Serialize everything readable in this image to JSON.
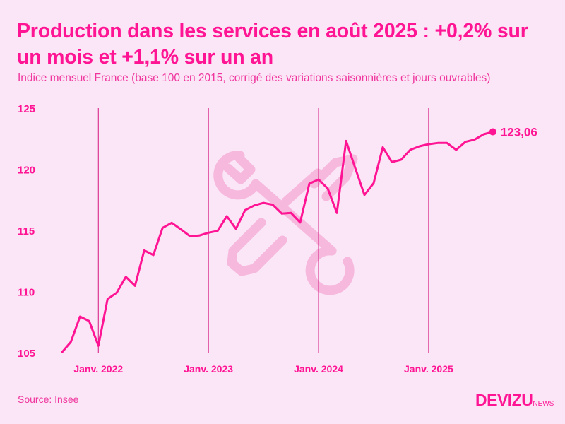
{
  "title": "Production dans les services en août 2025 : +0,2% sur un mois et +1,1% sur un an",
  "subtitle": "Indice mensuel France (base 100 en 2015, corrigé des variations saisonnières et jours ouvrables)",
  "source": "Source: Insee",
  "logo": {
    "main": "DEVIZU",
    "suffix": "NEWS"
  },
  "colors": {
    "background": "#fae6f7",
    "accent": "#ff1493",
    "watermark": "#f7b8dd"
  },
  "watermark_icons": [
    "wrench-icon",
    "screwdriver-icon"
  ],
  "chart_data": {
    "type": "line",
    "title": "",
    "xlabel": "",
    "ylabel": "",
    "ylim": [
      105,
      125
    ],
    "yticks": [
      "105",
      "110",
      "115",
      "120",
      "125"
    ],
    "xticks": [
      "Janv. 2022",
      "Janv. 2023",
      "Janv. 2024",
      "Janv. 2025"
    ],
    "grid": "vertical lines at January of each year",
    "x_start": "2021-09",
    "x_end": "2025-08",
    "values": [
      105.0,
      105.87,
      107.95,
      107.58,
      105.56,
      109.38,
      109.9,
      111.2,
      110.47,
      113.36,
      112.98,
      115.21,
      115.62,
      115.08,
      114.52,
      114.58,
      114.81,
      114.96,
      116.16,
      115.12,
      116.66,
      117.04,
      117.25,
      117.1,
      116.37,
      116.43,
      115.64,
      118.82,
      119.16,
      118.43,
      116.43,
      122.32,
      120.1,
      117.9,
      118.86,
      121.8,
      120.59,
      120.78,
      121.59,
      121.88,
      122.05,
      122.15,
      122.15,
      121.59,
      122.24,
      122.42,
      122.86,
      123.06
    ],
    "last_label": "123,06"
  }
}
